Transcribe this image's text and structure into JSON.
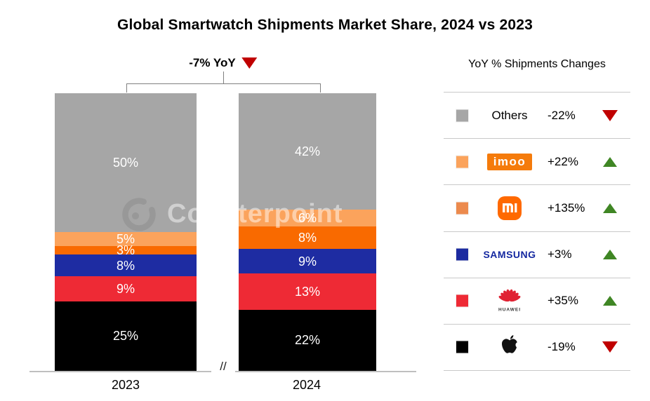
{
  "title": "Global Smartwatch Shipments Market Share, 2024 vs 2023",
  "yoy_total": {
    "label": "-7% YoY",
    "direction": "down"
  },
  "watermark": {
    "text": "Counterpoint"
  },
  "axis": {
    "break_symbol": "//"
  },
  "legend": {
    "header": "YoY % Shipments Changes",
    "rows": [
      {
        "brand": "Others",
        "logo": "text",
        "label": "Others",
        "change": "-22%",
        "direction": "down",
        "swatch": "#A6A6A6"
      },
      {
        "brand": "imoo",
        "logo": "imoo",
        "label": "imoo",
        "change": "+22%",
        "direction": "up",
        "swatch": "#FBA35C"
      },
      {
        "brand": "Xiaomi",
        "logo": "mi",
        "label": "mi",
        "change": "+135%",
        "direction": "up",
        "swatch": "#EC8A4D"
      },
      {
        "brand": "Samsung",
        "logo": "samsung",
        "label": "SAMSUNG",
        "change": "+3%",
        "direction": "up",
        "swatch": "#1C2BA0"
      },
      {
        "brand": "Huawei",
        "logo": "huawei",
        "label": "HUAWEI",
        "change": "+35%",
        "direction": "up",
        "swatch": "#EE2A35"
      },
      {
        "brand": "Apple",
        "logo": "apple",
        "label": "",
        "change": "-19%",
        "direction": "down",
        "swatch": "#000000"
      }
    ]
  },
  "chart_data": {
    "type": "bar",
    "stacked": true,
    "unit": "%",
    "title": "Global Smartwatch Shipments Market Share, 2024 vs 2023",
    "categories": [
      "2023",
      "2024"
    ],
    "series": [
      {
        "name": "Apple",
        "color": "#000000",
        "values": [
          25,
          22
        ],
        "yoy_change": "-19%"
      },
      {
        "name": "Huawei",
        "color": "#EE2A35",
        "values": [
          9,
          13
        ],
        "yoy_change": "+35%"
      },
      {
        "name": "Samsung",
        "color": "#1E2CA2",
        "values": [
          8,
          9
        ],
        "yoy_change": "+3%"
      },
      {
        "name": "Xiaomi",
        "color": "#F96A00",
        "values": [
          3,
          8
        ],
        "yoy_change": "+135%"
      },
      {
        "name": "imoo",
        "color": "#FBA35C",
        "values": [
          5,
          6
        ],
        "yoy_change": "+22%"
      },
      {
        "name": "Others",
        "color": "#A6A6A6",
        "values": [
          50,
          42
        ],
        "yoy_change": "-22%"
      }
    ],
    "total_yoy_change": "-7%",
    "ylim": [
      0,
      100
    ],
    "legend_position": "right",
    "grid": false
  }
}
